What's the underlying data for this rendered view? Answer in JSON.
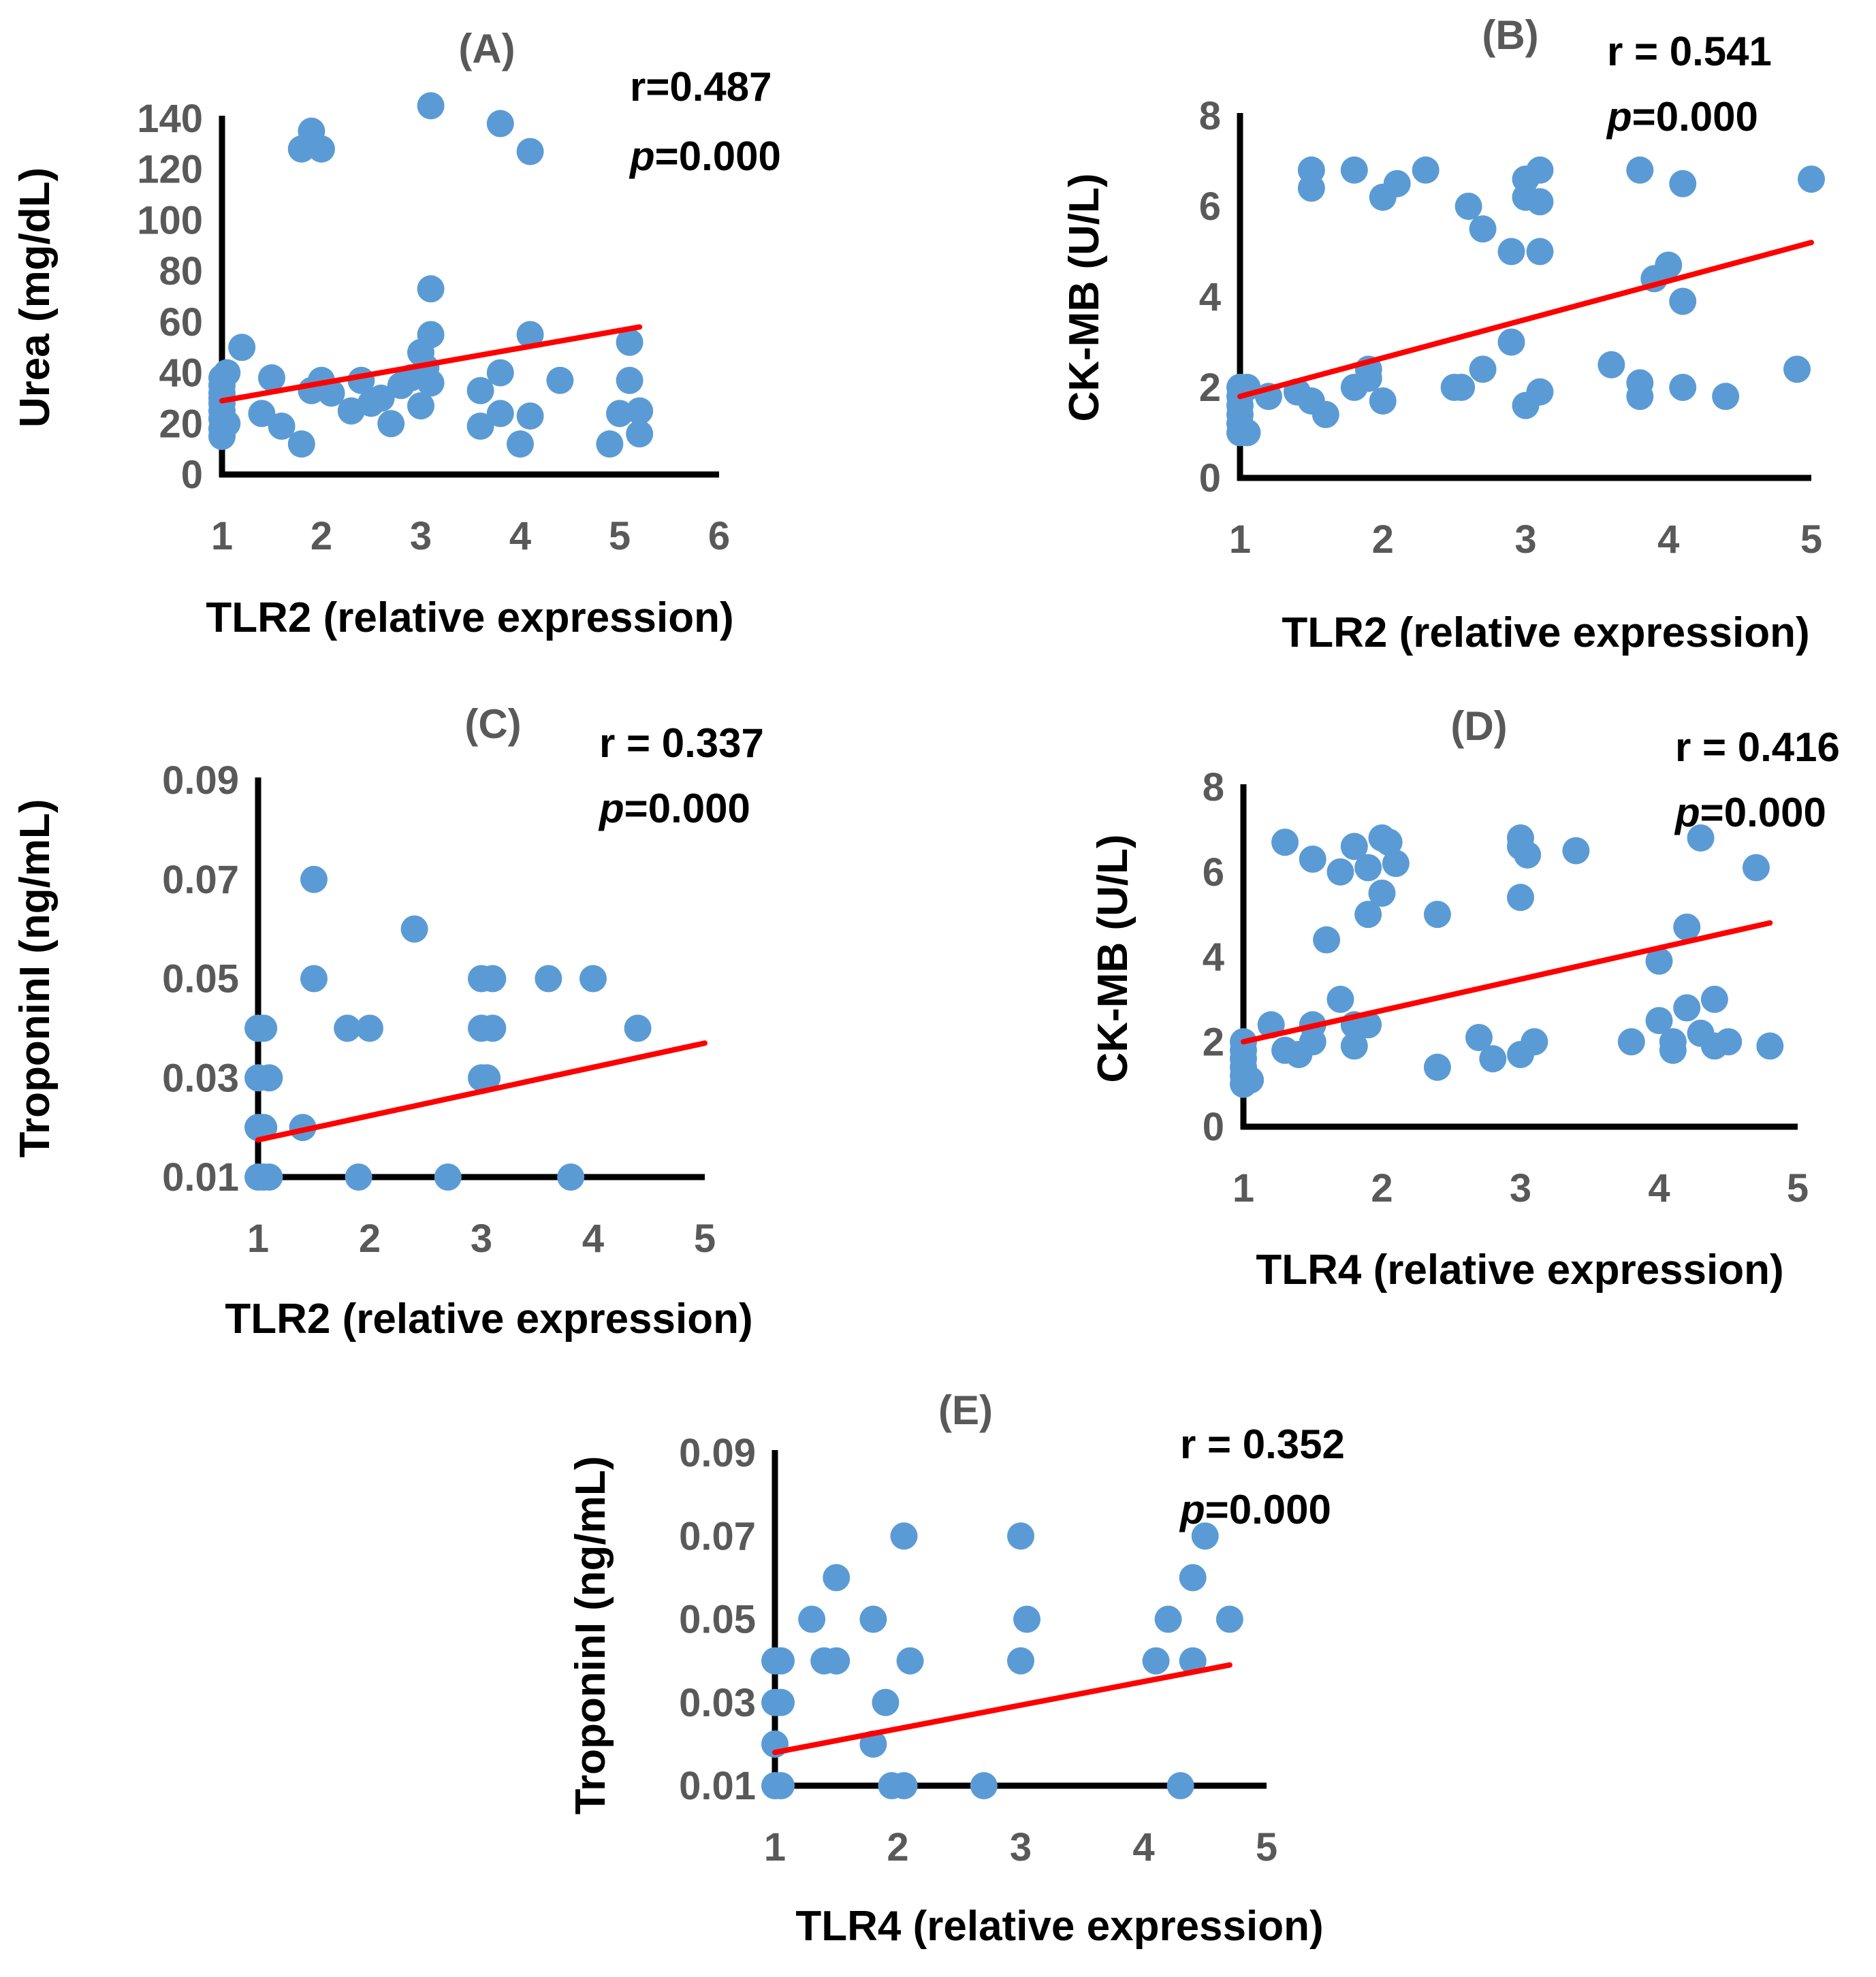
{
  "figure": {
    "colors": {
      "point": "#5b9bd5",
      "trend": "#ff0000",
      "axis": "#000000",
      "tick_text": "#595959"
    }
  },
  "chart_data": [
    {
      "id": "A",
      "type": "scatter",
      "title": "(A)",
      "xlabel": "TLR2 (relative expression)",
      "ylabel": "Urea (mg/dL)",
      "stat_r": "r=0.487",
      "stat_p_italic": "p",
      "stat_p_value": "=0.000",
      "xlim": [
        1,
        6
      ],
      "ylim": [
        0,
        140
      ],
      "xticks": [
        "1",
        "2",
        "3",
        "4",
        "5",
        "6"
      ],
      "yticks": [
        "0",
        "20",
        "40",
        "60",
        "80",
        "100",
        "120",
        "140"
      ],
      "trend": {
        "x": [
          1,
          5.2
        ],
        "y": [
          29,
          58
        ]
      },
      "points": [
        [
          1.8,
          128
        ],
        [
          1.9,
          135
        ],
        [
          2.0,
          128
        ],
        [
          3.1,
          145
        ],
        [
          3.8,
          138
        ],
        [
          4.1,
          127
        ],
        [
          1.2,
          50
        ],
        [
          1.0,
          38
        ],
        [
          1.0,
          35
        ],
        [
          1.0,
          32
        ],
        [
          1.0,
          30
        ],
        [
          1.0,
          28
        ],
        [
          1.0,
          25
        ],
        [
          1.0,
          22
        ],
        [
          1.0,
          18
        ],
        [
          1.0,
          15
        ],
        [
          1.05,
          20
        ],
        [
          1.05,
          40
        ],
        [
          1.4,
          24
        ],
        [
          1.5,
          38
        ],
        [
          1.6,
          19
        ],
        [
          1.8,
          12
        ],
        [
          1.9,
          33
        ],
        [
          2.0,
          37
        ],
        [
          2.1,
          32
        ],
        [
          2.3,
          25
        ],
        [
          2.4,
          37
        ],
        [
          2.5,
          28
        ],
        [
          2.6,
          30
        ],
        [
          2.7,
          20
        ],
        [
          2.8,
          35
        ],
        [
          2.9,
          38
        ],
        [
          3.0,
          48
        ],
        [
          3.0,
          27
        ],
        [
          3.05,
          42
        ],
        [
          3.1,
          73
        ],
        [
          3.1,
          55
        ],
        [
          3.1,
          36
        ],
        [
          3.6,
          33
        ],
        [
          3.6,
          19
        ],
        [
          3.8,
          40
        ],
        [
          3.8,
          24
        ],
        [
          4.0,
          12
        ],
        [
          4.1,
          55
        ],
        [
          4.1,
          23
        ],
        [
          4.4,
          37
        ],
        [
          4.9,
          12
        ],
        [
          5.0,
          24
        ],
        [
          5.1,
          52
        ],
        [
          5.1,
          37
        ],
        [
          5.2,
          25
        ],
        [
          5.2,
          16
        ]
      ]
    },
    {
      "id": "B",
      "type": "scatter",
      "title": "(B)",
      "xlabel": "TLR2 (relative expression)",
      "ylabel": "CK-MB (U/L)",
      "stat_r": "r = 0.541",
      "stat_p_italic": "p",
      "stat_p_value": "=0.000",
      "xlim": [
        1,
        5
      ],
      "ylim": [
        0,
        8
      ],
      "xticks": [
        "1",
        "2",
        "3",
        "4",
        "5"
      ],
      "yticks": [
        "0",
        "2",
        "4",
        "6",
        "8"
      ],
      "trend": {
        "x": [
          1,
          5
        ],
        "y": [
          1.8,
          5.2
        ]
      },
      "points": [
        [
          1.5,
          6.8
        ],
        [
          1.5,
          6.4
        ],
        [
          1.8,
          6.8
        ],
        [
          2.0,
          6.2
        ],
        [
          2.1,
          6.5
        ],
        [
          2.3,
          6.8
        ],
        [
          2.6,
          6.0
        ],
        [
          2.7,
          5.5
        ],
        [
          2.9,
          5.0
        ],
        [
          3.0,
          6.6
        ],
        [
          3.0,
          6.2
        ],
        [
          3.1,
          6.8
        ],
        [
          3.1,
          6.1
        ],
        [
          3.1,
          5.0
        ],
        [
          3.8,
          6.8
        ],
        [
          4.1,
          6.5
        ],
        [
          5.0,
          6.6
        ],
        [
          3.9,
          4.4
        ],
        [
          4.0,
          4.7
        ],
        [
          4.1,
          3.9
        ],
        [
          2.9,
          3.0
        ],
        [
          3.6,
          2.5
        ],
        [
          4.9,
          2.4
        ],
        [
          1.0,
          2.0
        ],
        [
          1.0,
          1.8
        ],
        [
          1.0,
          1.6
        ],
        [
          1.0,
          1.4
        ],
        [
          1.0,
          1.2
        ],
        [
          1.0,
          1.0
        ],
        [
          1.05,
          2.0
        ],
        [
          1.05,
          1.0
        ],
        [
          1.2,
          1.8
        ],
        [
          1.4,
          1.9
        ],
        [
          1.5,
          1.7
        ],
        [
          1.6,
          1.4
        ],
        [
          1.8,
          2.0
        ],
        [
          1.9,
          2.2
        ],
        [
          1.9,
          2.4
        ],
        [
          2.0,
          1.7
        ],
        [
          2.5,
          2.0
        ],
        [
          2.55,
          2.0
        ],
        [
          2.7,
          2.4
        ],
        [
          3.0,
          1.6
        ],
        [
          3.1,
          1.9
        ],
        [
          3.8,
          2.1
        ],
        [
          3.8,
          1.8
        ],
        [
          4.1,
          2.0
        ],
        [
          4.4,
          1.8
        ]
      ]
    },
    {
      "id": "C",
      "type": "scatter",
      "title": "(C)",
      "xlabel": "TLR2 (relative expression)",
      "ylabel": "TroponinI (ng/mL)",
      "stat_r": "r = 0.337",
      "stat_p_italic": "p",
      "stat_p_value": "=0.000",
      "xlim": [
        1,
        5
      ],
      "ylim": [
        0.01,
        0.09
      ],
      "xticks": [
        "1",
        "2",
        "3",
        "4",
        "5"
      ],
      "yticks": [
        "0.01",
        "0.03",
        "0.05",
        "0.07",
        "0.09"
      ],
      "trend": {
        "x": [
          1,
          5
        ],
        "y": [
          0.0175,
          0.037
        ]
      },
      "points": [
        [
          1.5,
          0.07
        ],
        [
          2.4,
          0.06
        ],
        [
          1.5,
          0.05
        ],
        [
          3.0,
          0.05
        ],
        [
          3.1,
          0.05
        ],
        [
          3.6,
          0.05
        ],
        [
          4.0,
          0.05
        ],
        [
          1.0,
          0.04
        ],
        [
          1.05,
          0.04
        ],
        [
          1.8,
          0.04
        ],
        [
          2.0,
          0.04
        ],
        [
          3.0,
          0.04
        ],
        [
          3.1,
          0.04
        ],
        [
          4.4,
          0.04
        ],
        [
          1.0,
          0.03
        ],
        [
          1.1,
          0.03
        ],
        [
          3.0,
          0.03
        ],
        [
          3.05,
          0.03
        ],
        [
          1.0,
          0.02
        ],
        [
          1.05,
          0.02
        ],
        [
          1.4,
          0.02
        ],
        [
          1.0,
          0.01
        ],
        [
          1.05,
          0.01
        ],
        [
          1.1,
          0.01
        ],
        [
          1.9,
          0.01
        ],
        [
          2.7,
          0.01
        ],
        [
          3.8,
          0.01
        ]
      ]
    },
    {
      "id": "D",
      "type": "scatter",
      "title": "(D)",
      "xlabel": "TLR4 (relative expression)",
      "ylabel": "CK-MB (U/L)",
      "stat_r": "r = 0.416",
      "stat_p_italic": "p",
      "stat_p_value": "=0.000",
      "xlim": [
        1,
        5
      ],
      "ylim": [
        0,
        8
      ],
      "xticks": [
        "1",
        "2",
        "3",
        "4",
        "5"
      ],
      "yticks": [
        "0",
        "2",
        "4",
        "6",
        "8"
      ],
      "trend": {
        "x": [
          1,
          4.8
        ],
        "y": [
          2.0,
          4.8
        ]
      },
      "points": [
        [
          1.3,
          6.7
        ],
        [
          1.5,
          6.3
        ],
        [
          1.7,
          6.0
        ],
        [
          1.8,
          6.6
        ],
        [
          1.9,
          6.1
        ],
        [
          2.0,
          6.8
        ],
        [
          2.05,
          6.7
        ],
        [
          2.1,
          6.2
        ],
        [
          2.0,
          5.5
        ],
        [
          1.9,
          5.0
        ],
        [
          1.6,
          4.4
        ],
        [
          2.4,
          5.0
        ],
        [
          3.0,
          6.8
        ],
        [
          3.0,
          6.6
        ],
        [
          3.05,
          6.4
        ],
        [
          3.4,
          6.5
        ],
        [
          3.0,
          5.4
        ],
        [
          4.3,
          6.8
        ],
        [
          4.7,
          6.1
        ],
        [
          4.2,
          4.7
        ],
        [
          4.0,
          3.9
        ],
        [
          1.7,
          3.0
        ],
        [
          1.0,
          2.0
        ],
        [
          1.0,
          1.8
        ],
        [
          1.0,
          1.6
        ],
        [
          1.0,
          1.4
        ],
        [
          1.0,
          1.2
        ],
        [
          1.0,
          1.0
        ],
        [
          1.05,
          1.1
        ],
        [
          1.2,
          2.4
        ],
        [
          1.3,
          1.8
        ],
        [
          1.4,
          1.7
        ],
        [
          1.5,
          2.0
        ],
        [
          1.5,
          2.4
        ],
        [
          1.8,
          1.9
        ],
        [
          1.8,
          2.4
        ],
        [
          1.9,
          2.4
        ],
        [
          2.4,
          1.4
        ],
        [
          2.7,
          2.1
        ],
        [
          2.8,
          1.6
        ],
        [
          3.0,
          1.7
        ],
        [
          3.1,
          2.0
        ],
        [
          3.8,
          2.0
        ],
        [
          4.0,
          2.5
        ],
        [
          4.1,
          2.0
        ],
        [
          4.1,
          1.8
        ],
        [
          4.2,
          2.8
        ],
        [
          4.3,
          2.2
        ],
        [
          4.4,
          3.0
        ],
        [
          4.4,
          1.9
        ],
        [
          4.5,
          2.0
        ],
        [
          4.8,
          1.9
        ]
      ]
    },
    {
      "id": "E",
      "type": "scatter",
      "title": "(E)",
      "xlabel": "TLR4 (relative expression)",
      "ylabel": "TroponinI (ng/mL)",
      "stat_r": "r = 0.352",
      "stat_p_italic": "p",
      "stat_p_value": "=0.000",
      "xlim": [
        1,
        5
      ],
      "ylim": [
        0.01,
        0.09
      ],
      "xticks": [
        "1",
        "2",
        "3",
        "4",
        "5"
      ],
      "yticks": [
        "0.01",
        "0.03",
        "0.05",
        "0.07",
        "0.09"
      ],
      "trend": {
        "x": [
          1,
          4.7
        ],
        "y": [
          0.018,
          0.039
        ]
      },
      "points": [
        [
          2.05,
          0.07
        ],
        [
          3.0,
          0.07
        ],
        [
          4.5,
          0.07
        ],
        [
          1.5,
          0.06
        ],
        [
          4.4,
          0.06
        ],
        [
          1.3,
          0.05
        ],
        [
          1.8,
          0.05
        ],
        [
          3.05,
          0.05
        ],
        [
          4.2,
          0.05
        ],
        [
          4.7,
          0.05
        ],
        [
          1.0,
          0.04
        ],
        [
          1.05,
          0.04
        ],
        [
          1.4,
          0.04
        ],
        [
          1.5,
          0.04
        ],
        [
          2.1,
          0.04
        ],
        [
          3.0,
          0.04
        ],
        [
          4.1,
          0.04
        ],
        [
          4.4,
          0.04
        ],
        [
          1.0,
          0.03
        ],
        [
          1.05,
          0.03
        ],
        [
          1.9,
          0.03
        ],
        [
          1.0,
          0.02
        ],
        [
          1.8,
          0.02
        ],
        [
          1.0,
          0.01
        ],
        [
          1.05,
          0.01
        ],
        [
          1.95,
          0.01
        ],
        [
          2.05,
          0.01
        ],
        [
          2.7,
          0.01
        ],
        [
          4.3,
          0.01
        ]
      ]
    }
  ]
}
